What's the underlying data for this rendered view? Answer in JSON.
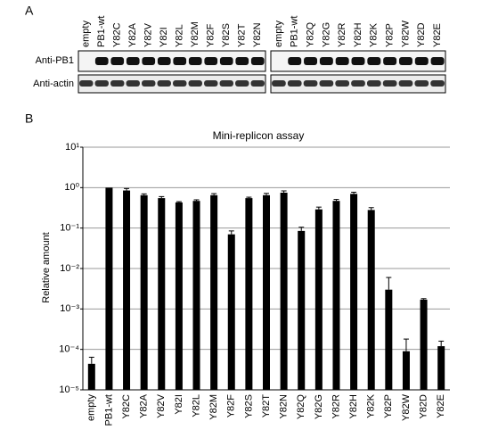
{
  "panel_a": {
    "label": "A",
    "blot_1": {
      "lanes": [
        "empty",
        "PB1-wt",
        "Y82C",
        "Y82A",
        "Y82V",
        "Y82I",
        "Y82L",
        "Y82M",
        "Y82F",
        "Y82S",
        "Y82T",
        "Y82N"
      ]
    },
    "blot_2": {
      "lanes": [
        "empty",
        "PB1-wt",
        "Y82Q",
        "Y82G",
        "Y82R",
        "Y82H",
        "Y82K",
        "Y82P",
        "Y82W",
        "Y82D",
        "Y82E"
      ]
    },
    "rows": [
      "Anti-PB1",
      "Anti-actin"
    ]
  },
  "chart_data": {
    "type": "bar",
    "panel_label": "B",
    "title": "Mini-replicon assay",
    "y_label": "Relative amount",
    "categories": [
      "empty",
      "PB1-wt",
      "Y82C",
      "Y82A",
      "Y82V",
      "Y82I",
      "Y82L",
      "Y82M",
      "Y82F",
      "Y82S",
      "Y82T",
      "Y82N",
      "Y82Q",
      "Y82G",
      "Y82R",
      "Y82H",
      "Y82K",
      "Y82P",
      "Y82W",
      "Y82D",
      "Y82E"
    ],
    "values": [
      4.4e-05,
      1.0,
      0.85,
      0.65,
      0.55,
      0.43,
      0.47,
      0.65,
      0.07,
      0.55,
      0.65,
      0.75,
      0.085,
      0.29,
      0.47,
      0.7,
      0.28,
      0.003,
      9e-05,
      0.0017,
      0.00012
    ],
    "errors": [
      2e-05,
      0,
      0.1,
      0.05,
      0.05,
      0.02,
      0.03,
      0.06,
      0.015,
      0.03,
      0.07,
      0.08,
      0.02,
      0.04,
      0.04,
      0.07,
      0.04,
      0.003,
      9e-05,
      0.0001,
      4e-05
    ],
    "color": "#000000",
    "log_scale": true,
    "grid": true,
    "ylim": [
      1e-05,
      10
    ],
    "yticks": [
      {
        "value": 1e-05,
        "label": "10⁻⁵"
      },
      {
        "value": 0.0001,
        "label": "10⁻⁴"
      },
      {
        "value": 0.001,
        "label": "10⁻³"
      },
      {
        "value": 0.01,
        "label": "10⁻²"
      },
      {
        "value": 0.1,
        "label": "10⁻¹"
      },
      {
        "value": 1,
        "label": "10⁰"
      },
      {
        "value": 10,
        "label": "10¹"
      }
    ]
  }
}
